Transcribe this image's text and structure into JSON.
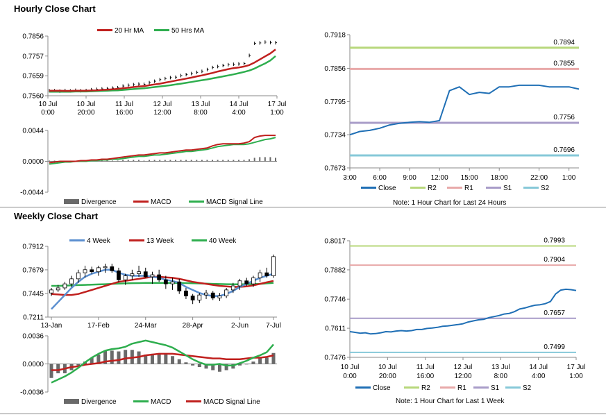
{
  "sections": {
    "hourly_title": "Hourly Close Chart",
    "weekly_title": "Weekly Close Chart"
  },
  "colors": {
    "close": "#1f6fb5",
    "r2": "#b7d77a",
    "r1": "#e8a9a9",
    "s1": "#a89cc8",
    "s2": "#86c8d8",
    "ma_red": "#c0201e",
    "ma_green": "#2eae4e",
    "ma_blue": "#5b8fd0",
    "divergence": "#6a6a6a"
  },
  "chart_data": [
    {
      "id": "hourly_price",
      "type": "line",
      "ylim": [
        0.756,
        0.7856
      ],
      "yticks": [
        "0.7856",
        "0.7757",
        "0.7659",
        "0.7560"
      ],
      "xticks": [
        [
          "10 Jul",
          "0:00"
        ],
        [
          "10 Jul",
          "20:00"
        ],
        [
          "11 Jul",
          "16:00"
        ],
        [
          "12 Jul",
          "12:00"
        ],
        [
          "13 Jul",
          "8:00"
        ],
        [
          "14 Jul",
          "4:00"
        ],
        [
          "17 Jul",
          "1:00"
        ]
      ],
      "legend": [
        "20 Hr MA",
        "50 Hrs MA"
      ],
      "close": [
        0.7585,
        0.7585,
        0.7583,
        0.7586,
        0.7584,
        0.7587,
        0.7585,
        0.7586,
        0.759,
        0.7592,
        0.7594,
        0.7595,
        0.7598,
        0.76,
        0.7608,
        0.7612,
        0.7615,
        0.7618,
        0.7617,
        0.7625,
        0.7632,
        0.764,
        0.7645,
        0.765,
        0.7652,
        0.766,
        0.7665,
        0.767,
        0.7676,
        0.7681,
        0.769,
        0.77,
        0.7705,
        0.771,
        0.7714,
        0.7716,
        0.7718,
        0.772,
        0.776,
        0.782,
        0.7822,
        0.7826,
        0.7824,
        0.7823
      ],
      "series": [
        {
          "name": "20 Hr MA",
          "values": [
            0.7585,
            0.7585,
            0.7585,
            0.7584,
            0.7584,
            0.7585,
            0.7585,
            0.7585,
            0.7586,
            0.7587,
            0.7589,
            0.759,
            0.7592,
            0.7594,
            0.7597,
            0.76,
            0.7603,
            0.7606,
            0.7608,
            0.7612,
            0.7616,
            0.762,
            0.7625,
            0.763,
            0.7635,
            0.764,
            0.7645,
            0.765,
            0.7656,
            0.7661,
            0.7667,
            0.7673,
            0.768,
            0.7686,
            0.7692,
            0.7697,
            0.77,
            0.7705,
            0.7712,
            0.7725,
            0.774,
            0.7755,
            0.777,
            0.779
          ]
        },
        {
          "name": "50 Hrs MA",
          "values": [
            0.758,
            0.758,
            0.758,
            0.758,
            0.758,
            0.7581,
            0.7581,
            0.7581,
            0.7582,
            0.7583,
            0.7584,
            0.7585,
            0.7586,
            0.7587,
            0.7589,
            0.7591,
            0.7593,
            0.7595,
            0.7597,
            0.76,
            0.7603,
            0.7606,
            0.7609,
            0.7612,
            0.7616,
            0.762,
            0.7624,
            0.7628,
            0.7633,
            0.7637,
            0.7641,
            0.7646,
            0.7651,
            0.7656,
            0.7661,
            0.7666,
            0.7672,
            0.7678,
            0.7685,
            0.7695,
            0.7708,
            0.772,
            0.7735,
            0.7757
          ]
        }
      ]
    },
    {
      "id": "hourly_macd",
      "type": "bar",
      "ylim": [
        -0.0044,
        0.0044
      ],
      "yticks": [
        "0.0044",
        "0.0000",
        "-0.0044"
      ],
      "legend": [
        "Divergence",
        "MACD",
        "MACD Signal Line"
      ],
      "series": [
        {
          "name": "Divergence",
          "values": [
            0.0001,
            0.0001,
            0.0,
            0.0,
            0.0001,
            0.0,
            0.0,
            0.0001,
            0.0001,
            0.0001,
            0.0001,
            0.0001,
            0.0001,
            0.0001,
            0.0002,
            0.0002,
            0.0002,
            0.0002,
            0.0001,
            0.0002,
            0.0002,
            0.0002,
            0.0002,
            0.0002,
            0.0002,
            0.0002,
            0.0002,
            0.0002,
            0.0002,
            0.0002,
            0.0002,
            0.0002,
            0.0002,
            0.0002,
            0.0002,
            0.0002,
            0.0002,
            0.0002,
            0.0003,
            0.0005,
            0.0006,
            0.0006,
            0.0006,
            0.0005
          ]
        },
        {
          "name": "MACD",
          "values": [
            -0.0002,
            -0.0001,
            0.0,
            0.0,
            0.0,
            0.0,
            0.0001,
            0.0001,
            0.0002,
            0.0002,
            0.0003,
            0.0003,
            0.0004,
            0.0005,
            0.0006,
            0.0007,
            0.0008,
            0.0009,
            0.0009,
            0.001,
            0.0011,
            0.0012,
            0.0012,
            0.0013,
            0.0014,
            0.0015,
            0.0016,
            0.0016,
            0.0017,
            0.0018,
            0.0019,
            0.0022,
            0.0024,
            0.0025,
            0.0025,
            0.0025,
            0.0025,
            0.0026,
            0.0028,
            0.0034,
            0.0036,
            0.0037,
            0.0037,
            0.0037
          ]
        },
        {
          "name": "MACD Signal Line",
          "values": [
            -0.0004,
            -0.0003,
            -0.0002,
            -0.0001,
            -0.0001,
            0.0,
            0.0,
            0.0,
            0.0001,
            0.0001,
            0.0002,
            0.0002,
            0.0003,
            0.0003,
            0.0004,
            0.0005,
            0.0006,
            0.0007,
            0.0007,
            0.0008,
            0.0009,
            0.0009,
            0.001,
            0.0011,
            0.0012,
            0.0013,
            0.0014,
            0.0014,
            0.0015,
            0.0016,
            0.0017,
            0.0019,
            0.0021,
            0.0022,
            0.0023,
            0.0024,
            0.0024,
            0.0024,
            0.0025,
            0.0027,
            0.0029,
            0.0031,
            0.0032,
            0.0034
          ]
        }
      ]
    },
    {
      "id": "hourly_levels",
      "type": "line",
      "ylim": [
        0.7673,
        0.7918
      ],
      "yticks": [
        "0.7918",
        "0.7856",
        "0.7795",
        "0.7734",
        "0.7673"
      ],
      "x": [
        "3:00",
        "4:00",
        "5:00",
        "6:00",
        "7:00",
        "8:00",
        "9:00",
        "10:00",
        "11:00",
        "12:00",
        "13:00",
        "14:00",
        "15:00",
        "16:00",
        "17:00",
        "18:00",
        "19:00",
        "20:00",
        "21:00",
        "22:00",
        "23:00",
        "0:00",
        "1:00",
        "2:00"
      ],
      "xticks": [
        "3:00",
        "6:00",
        "9:00",
        "12:00",
        "15:00",
        "18:00",
        "22:00",
        "1:00"
      ],
      "close": [
        0.7734,
        0.774,
        0.7742,
        0.7746,
        0.7752,
        0.7755,
        0.7757,
        0.7758,
        0.7757,
        0.776,
        0.7815,
        0.7822,
        0.7808,
        0.7812,
        0.781,
        0.7822,
        0.7822,
        0.7825,
        0.7825,
        0.7825,
        0.7822,
        0.7822,
        0.7822,
        0.7818
      ],
      "levels": [
        {
          "name": "R2",
          "value": 0.7894,
          "label": "0.7894"
        },
        {
          "name": "R1",
          "value": 0.7855,
          "label": "0.7855"
        },
        {
          "name": "S1",
          "value": 0.7756,
          "label": "0.7756"
        },
        {
          "name": "S2",
          "value": 0.7696,
          "label": "0.7696"
        }
      ],
      "legend": [
        "Close",
        "R2",
        "R1",
        "S1",
        "S2"
      ],
      "note": "Note: 1 Hour Chart for Last 24 Hours"
    },
    {
      "id": "weekly_price",
      "type": "line",
      "ylim": [
        0.7211,
        0.7912
      ],
      "yticks": [
        "0.7912",
        "0.7679",
        "0.7445",
        "0.7211"
      ],
      "xticks": [
        "13-Jan",
        "17-Feb",
        "24-Mar",
        "28-Apr",
        "2-Jun",
        "7-Jul"
      ],
      "legend": [
        "4 Week",
        "13 Week",
        "40 Week"
      ],
      "candles": [
        [
          0.745,
          0.75,
          0.742,
          0.748
        ],
        [
          0.748,
          0.753,
          0.746,
          0.75
        ],
        [
          0.75,
          0.756,
          0.748,
          0.754
        ],
        [
          0.754,
          0.762,
          0.751,
          0.759
        ],
        [
          0.759,
          0.768,
          0.755,
          0.765
        ],
        [
          0.765,
          0.772,
          0.76,
          0.768
        ],
        [
          0.768,
          0.771,
          0.764,
          0.766
        ],
        [
          0.766,
          0.772,
          0.762,
          0.77
        ],
        [
          0.77,
          0.774,
          0.765,
          0.771
        ],
        [
          0.771,
          0.774,
          0.765,
          0.767
        ],
        [
          0.767,
          0.77,
          0.756,
          0.758
        ],
        [
          0.758,
          0.764,
          0.753,
          0.762
        ],
        [
          0.762,
          0.768,
          0.758,
          0.764
        ],
        [
          0.764,
          0.772,
          0.761,
          0.766
        ],
        [
          0.766,
          0.77,
          0.76,
          0.761
        ],
        [
          0.761,
          0.766,
          0.754,
          0.763
        ],
        [
          0.763,
          0.768,
          0.756,
          0.758
        ],
        [
          0.758,
          0.762,
          0.749,
          0.754
        ],
        [
          0.754,
          0.76,
          0.748,
          0.756
        ],
        [
          0.756,
          0.759,
          0.744,
          0.747
        ],
        [
          0.747,
          0.75,
          0.739,
          0.742
        ],
        [
          0.742,
          0.744,
          0.734,
          0.738
        ],
        [
          0.738,
          0.745,
          0.735,
          0.743
        ],
        [
          0.743,
          0.748,
          0.739,
          0.745
        ],
        [
          0.745,
          0.747,
          0.738,
          0.74
        ],
        [
          0.74,
          0.745,
          0.737,
          0.742
        ],
        [
          0.742,
          0.75,
          0.74,
          0.748
        ],
        [
          0.748,
          0.755,
          0.745,
          0.752
        ],
        [
          0.752,
          0.759,
          0.748,
          0.757
        ],
        [
          0.757,
          0.76,
          0.752,
          0.754
        ],
        [
          0.754,
          0.762,
          0.751,
          0.76
        ],
        [
          0.76,
          0.768,
          0.756,
          0.765
        ],
        [
          0.765,
          0.77,
          0.76,
          0.762
        ],
        [
          0.762,
          0.783,
          0.76,
          0.781
        ]
      ],
      "series": [
        {
          "name": "4 Week",
          "values": [
            0.729,
            0.736,
            0.743,
            0.75,
            0.756,
            0.761,
            0.764,
            0.766,
            0.768,
            0.768,
            0.765,
            0.763,
            0.762,
            0.762,
            0.762,
            0.761,
            0.76,
            0.758,
            0.757,
            0.755,
            0.751,
            0.748,
            0.745,
            0.743,
            0.742,
            0.742,
            0.744,
            0.747,
            0.751,
            0.754,
            0.757,
            0.76,
            0.762,
            0.764
          ]
        },
        {
          "name": "13 Week",
          "values": [
            0.744,
            0.7435,
            0.743,
            0.743,
            0.744,
            0.746,
            0.748,
            0.75,
            0.752,
            0.754,
            0.756,
            0.757,
            0.758,
            0.759,
            0.76,
            0.761,
            0.761,
            0.7605,
            0.76,
            0.759,
            0.7575,
            0.756,
            0.755,
            0.754,
            0.753,
            0.752,
            0.7515,
            0.751,
            0.751,
            0.7515,
            0.7525,
            0.754,
            0.7555,
            0.757
          ]
        },
        {
          "name": "40 Week",
          "values": [
            0.752,
            0.752,
            0.7522,
            0.7525,
            0.7528,
            0.753,
            0.7532,
            0.7535,
            0.7537,
            0.754,
            0.7542,
            0.7545,
            0.7547,
            0.7548,
            0.755,
            0.755,
            0.755,
            0.755,
            0.755,
            0.7549,
            0.7548,
            0.7546,
            0.7544,
            0.7542,
            0.754,
            0.7538,
            0.7537,
            0.7536,
            0.7536,
            0.7537,
            0.7538,
            0.754,
            0.7545,
            0.755
          ]
        }
      ]
    },
    {
      "id": "weekly_macd",
      "type": "bar",
      "ylim": [
        -0.0036,
        0.0036
      ],
      "yticks": [
        "0.0036",
        "0.0000",
        "-0.0036"
      ],
      "legend": [
        "Divergence",
        "MACD",
        "MACD Signal Line"
      ],
      "series": [
        {
          "name": "Divergence",
          "values": [
            -0.0018,
            -0.0012,
            -0.0012,
            -0.0008,
            -0.0002,
            0.0003,
            0.0008,
            0.0012,
            0.0017,
            0.0017,
            0.0016,
            0.0018,
            0.0018,
            0.0016,
            0.0012,
            0.0013,
            0.0012,
            0.0012,
            0.001,
            0.0006,
            0.0002,
            -0.0002,
            -0.0004,
            -0.0006,
            -0.0008,
            -0.001,
            -0.0008,
            -0.0006,
            -0.0002,
            0.0,
            0.0003,
            0.0008,
            0.0008,
            0.0014
          ]
        },
        {
          "name": "MACD",
          "values": [
            -0.0024,
            -0.002,
            -0.0016,
            -0.0011,
            -0.0005,
            0.0002,
            0.0008,
            0.0013,
            0.0017,
            0.0019,
            0.002,
            0.0022,
            0.0026,
            0.0028,
            0.003,
            0.0028,
            0.0026,
            0.0024,
            0.0021,
            0.0016,
            0.0011,
            0.0006,
            0.0002,
            -0.0001,
            -0.0001,
            0.0,
            -0.0002,
            -0.0002,
            0.0001,
            0.0004,
            0.0008,
            0.0011,
            0.0015,
            0.0025
          ]
        },
        {
          "name": "MACD Signal Line",
          "values": [
            -0.0008,
            -0.0008,
            -0.0006,
            -0.0004,
            -0.0003,
            -0.0001,
            0.0,
            0.0001,
            0.0003,
            0.0004,
            0.0005,
            0.0007,
            0.0008,
            0.0009,
            0.0011,
            0.0012,
            0.0013,
            0.0013,
            0.0013,
            0.0012,
            0.0011,
            0.001,
            0.0009,
            0.0008,
            0.0007,
            0.0007,
            0.0006,
            0.0006,
            0.0006,
            0.0007,
            0.0008,
            0.0008,
            0.0009,
            0.0011
          ]
        }
      ]
    },
    {
      "id": "weekly_levels",
      "type": "line",
      "ylim": [
        0.7476,
        0.8017
      ],
      "yticks": [
        "0.8017",
        "0.7882",
        "0.7746",
        "0.7611",
        "0.7476"
      ],
      "xticks": [
        [
          "10 Jul",
          "0:00"
        ],
        [
          "10 Jul",
          "20:00"
        ],
        [
          "11 Jul",
          "16:00"
        ],
        [
          "12 Jul",
          "12:00"
        ],
        [
          "13 Jul",
          "8:00"
        ],
        [
          "14 Jul",
          "4:00"
        ],
        [
          "17 Jul",
          "1:00"
        ]
      ],
      "close": [
        0.7595,
        0.7592,
        0.7588,
        0.759,
        0.7585,
        0.7586,
        0.759,
        0.7595,
        0.7594,
        0.7598,
        0.76,
        0.7598,
        0.76,
        0.7605,
        0.7605,
        0.761,
        0.7612,
        0.7615,
        0.762,
        0.7622,
        0.7625,
        0.7628,
        0.7632,
        0.764,
        0.7645,
        0.765,
        0.7652,
        0.766,
        0.7665,
        0.767,
        0.7677,
        0.768,
        0.7688,
        0.77,
        0.7705,
        0.7712,
        0.7718,
        0.772,
        0.7725,
        0.7735,
        0.777,
        0.7788,
        0.7792,
        0.779,
        0.7786
      ],
      "levels": [
        {
          "name": "R2",
          "value": 0.7993,
          "label": "0.7993"
        },
        {
          "name": "R1",
          "value": 0.7904,
          "label": "0.7904"
        },
        {
          "name": "S1",
          "value": 0.7657,
          "label": "0.7657"
        },
        {
          "name": "S2",
          "value": 0.7499,
          "label": "0.7499"
        }
      ],
      "legend": [
        "Close",
        "R2",
        "R1",
        "S1",
        "S2"
      ],
      "note": "Note: 1 Hour Chart for Last 1 Week"
    }
  ]
}
